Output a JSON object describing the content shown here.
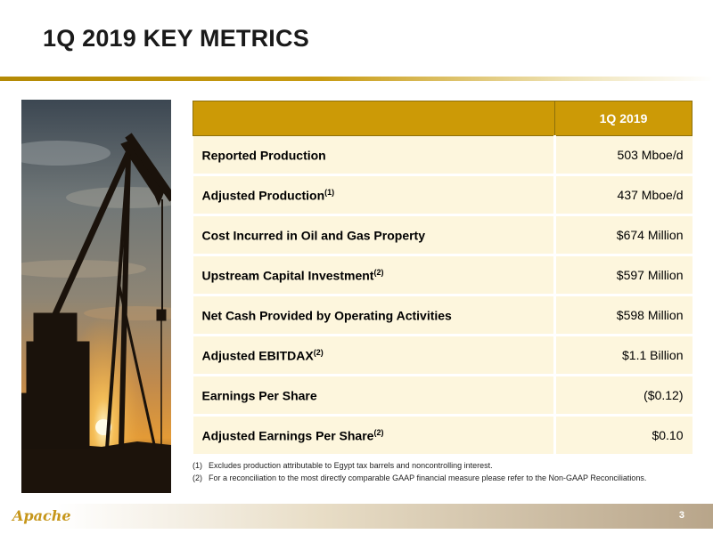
{
  "header": {
    "title": "1Q 2019 KEY METRICS"
  },
  "table": {
    "column_header": "1Q 2019",
    "rows": [
      {
        "label": "Reported Production",
        "note": "",
        "value": "503 Mboe/d"
      },
      {
        "label": "Adjusted Production",
        "note": "(1)",
        "value": "437 Mboe/d"
      },
      {
        "label": "Cost Incurred in Oil and Gas Property",
        "note": "",
        "value": "$674 Million"
      },
      {
        "label": "Upstream Capital Investment",
        "note": "(2)",
        "value": "$597 Million"
      },
      {
        "label": "Net Cash Provided by Operating Activities",
        "note": "",
        "value": "$598 Million"
      },
      {
        "label": "Adjusted EBITDAX",
        "note": "(2)",
        "value": "$1.1 Billion"
      },
      {
        "label": "Earnings Per Share",
        "note": "",
        "value": "($0.12)"
      },
      {
        "label": "Adjusted Earnings Per Share",
        "note": "(2)",
        "value": "$0.10"
      }
    ]
  },
  "footnotes": [
    {
      "num": "(1)",
      "text": "Excludes production attributable to Egypt tax barrels and noncontrolling interest."
    },
    {
      "num": "(2)",
      "text": "For a reconciliation to the most directly comparable GAAP financial measure please refer to the Non-GAAP Reconciliations."
    }
  ],
  "footer": {
    "logo": "Apache",
    "page_number": "3"
  },
  "colors": {
    "accent_gold": "#cc9a06",
    "row_fill": "#fdf6dd",
    "logo_gold": "#c6961a"
  },
  "icons": {
    "photo": "pumpjack-sunset-photo"
  }
}
